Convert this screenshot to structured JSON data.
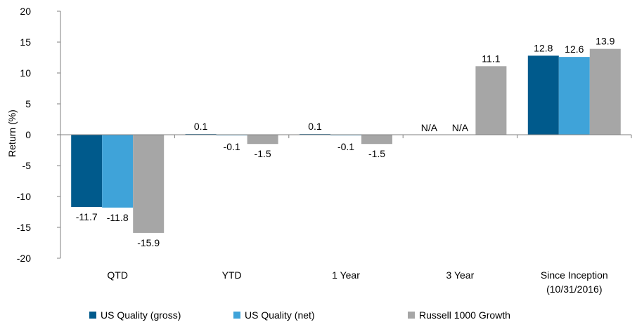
{
  "chart_data": {
    "type": "bar",
    "categories": [
      "QTD",
      "YTD",
      "1 Year",
      "3 Year",
      "Since Inception\n(10/31/2016)"
    ],
    "series": [
      {
        "name": "US Quality (gross)",
        "color": "#005A8C",
        "values": [
          -11.7,
          0.1,
          0.1,
          null,
          12.8
        ],
        "labels": [
          "-11.7",
          "0.1",
          "0.1",
          "N/A",
          "12.8"
        ]
      },
      {
        "name": "US Quality (net)",
        "color": "#3FA3D9",
        "values": [
          -11.8,
          -0.1,
          -0.1,
          null,
          12.6
        ],
        "labels": [
          "-11.8",
          "-0.1",
          "-0.1",
          "N/A",
          "12.6"
        ]
      },
      {
        "name": "Russell 1000 Growth",
        "color": "#A6A6A6",
        "values": [
          -15.9,
          -1.5,
          -1.5,
          11.1,
          13.9
        ],
        "labels": [
          "-15.9",
          "-1.5",
          "-1.5",
          "11.1",
          "13.9"
        ]
      }
    ],
    "ylabel": "Return (%)",
    "ylim": [
      -20,
      20
    ],
    "yticks": [
      20,
      15,
      10,
      5,
      0,
      -5,
      -10,
      -15,
      -20
    ],
    "grid": false,
    "legend_position": "bottom"
  }
}
